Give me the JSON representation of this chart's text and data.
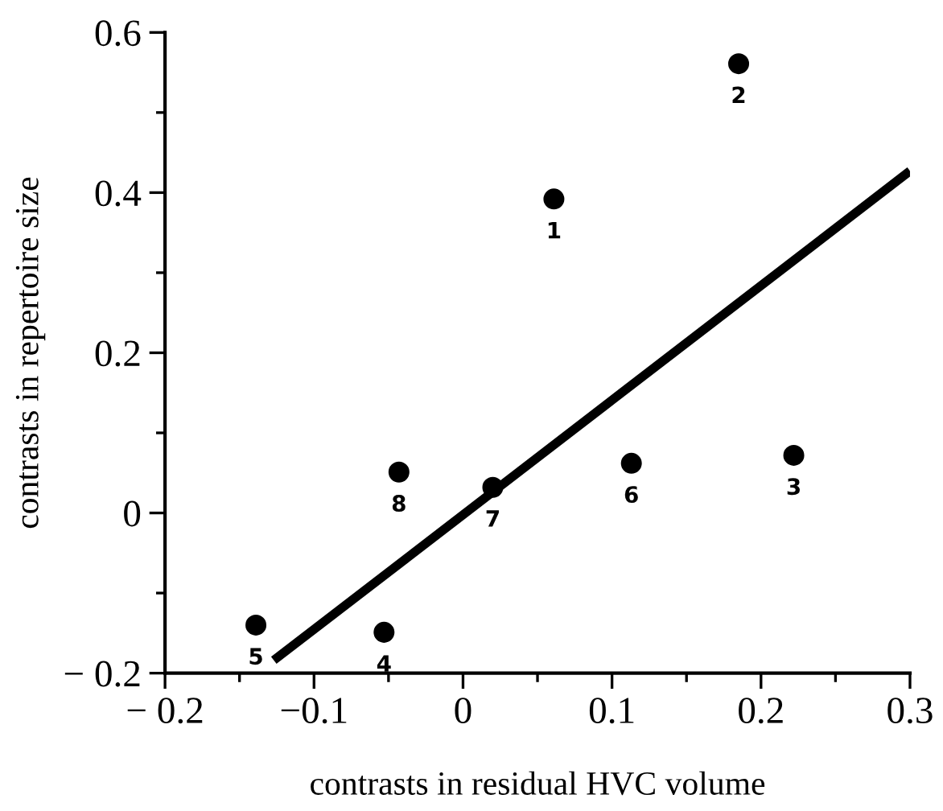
{
  "chart_data": {
    "type": "scatter",
    "xlabel": "contrasts in residual HVC volume",
    "ylabel": "contrasts in repertoire size",
    "xlim": [
      -0.2,
      0.3
    ],
    "ylim": [
      -0.2,
      0.6
    ],
    "xticks": [
      {
        "value": -0.2,
        "label": "− 0.2"
      },
      {
        "value": -0.15,
        "label": null
      },
      {
        "value": -0.1,
        "label": "−0.1"
      },
      {
        "value": -0.05,
        "label": null
      },
      0,
      {
        "value": 0.05,
        "label": null
      },
      0.1,
      {
        "value": 0.15,
        "label": null
      },
      0.2,
      {
        "value": 0.25,
        "label": null
      },
      0.3
    ],
    "yticks": [
      {
        "value": -0.2,
        "label": "− 0.2"
      },
      {
        "value": -0.1,
        "label": null
      },
      0,
      {
        "value": 0.1,
        "label": null
      },
      0.2,
      {
        "value": 0.3,
        "label": null
      },
      0.4,
      {
        "value": 0.5,
        "label": null
      },
      0.6
    ],
    "grid": false,
    "annotations": [
      {
        "text": "1",
        "x": 0.061,
        "y": 0.392
      },
      {
        "text": "2",
        "x": 0.185,
        "y": 0.561
      },
      {
        "text": "3",
        "x": 0.222,
        "y": 0.072
      },
      {
        "text": "4",
        "x": -0.053,
        "y": -0.149
      },
      {
        "text": "5",
        "x": -0.139,
        "y": -0.14
      },
      {
        "text": "6",
        "x": 0.113,
        "y": 0.062
      },
      {
        "text": "7",
        "x": 0.02,
        "y": 0.032
      },
      {
        "text": "8",
        "x": -0.043,
        "y": 0.051
      }
    ],
    "series": [
      {
        "color": "#000000",
        "marker": "circle",
        "x": [
          0.061,
          0.185,
          0.222,
          -0.053,
          -0.139,
          0.113,
          0.02,
          -0.043
        ],
        "values": [
          0.392,
          0.561,
          0.072,
          -0.149,
          -0.14,
          0.062,
          0.032,
          0.051
        ]
      },
      {
        "type": "line",
        "color": "#000000",
        "x": [
          -0.127,
          0.3
        ],
        "values": [
          -0.184,
          0.427
        ],
        "line_style": "solid"
      }
    ]
  }
}
